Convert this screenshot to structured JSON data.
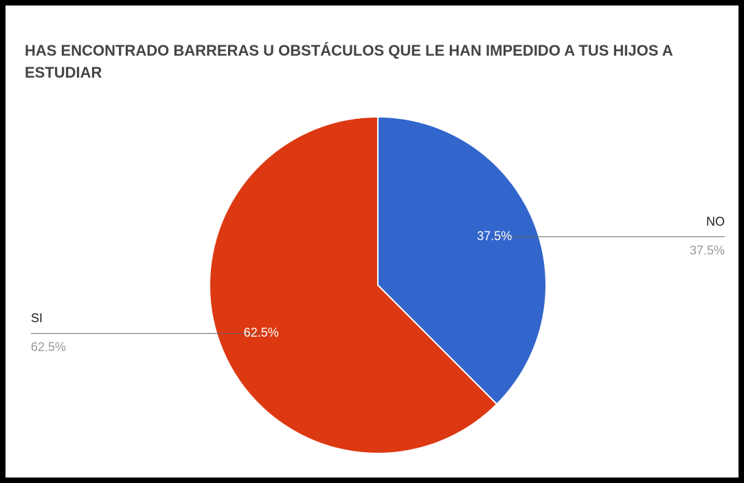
{
  "chart_data": {
    "type": "pie",
    "title": "HAS ENCONTRADO BARRERAS U OBSTÁCULOS QUE LE HAN IMPEDIDO A TUS HIJOS A ESTUDIAR",
    "categories": [
      "NO",
      "SI"
    ],
    "values": [
      37.5,
      62.5
    ],
    "value_labels": [
      "37.5%",
      "62.5%"
    ],
    "colors": [
      "#3366cc",
      "#dc3912"
    ]
  }
}
